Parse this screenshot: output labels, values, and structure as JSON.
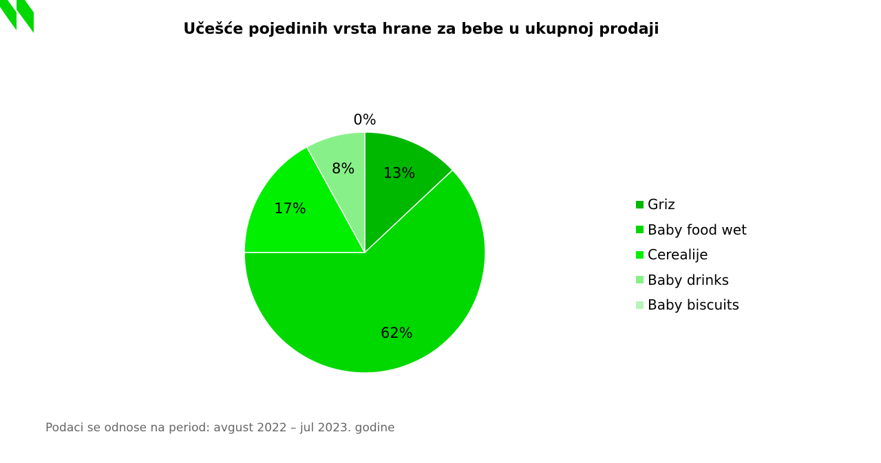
{
  "chart_data": {
    "type": "pie",
    "title": "Učešće pojedinih vrsta hrane za bebe u ukupnoj prodaji",
    "legend_position": "right",
    "slices": [
      {
        "name": "Griz",
        "value": 13,
        "label": "13%",
        "color": "#00B800"
      },
      {
        "name": "Baby food wet",
        "value": 62,
        "label": "62%",
        "color": "#00D800"
      },
      {
        "name": "Cerealije",
        "value": 17,
        "label": "17%",
        "color": "#00F000"
      },
      {
        "name": "Baby drinks",
        "value": 8,
        "label": "8%",
        "color": "#88F088"
      },
      {
        "name": "Baby biscuits",
        "value": 0,
        "label": "0%",
        "color": "#B8F4B8"
      }
    ]
  },
  "footnote": "Podaci se odnose na period: avgust 2022 – jul 2023. godine",
  "logo": {
    "icon": "brand-logo-icon",
    "color": "#00D800"
  }
}
